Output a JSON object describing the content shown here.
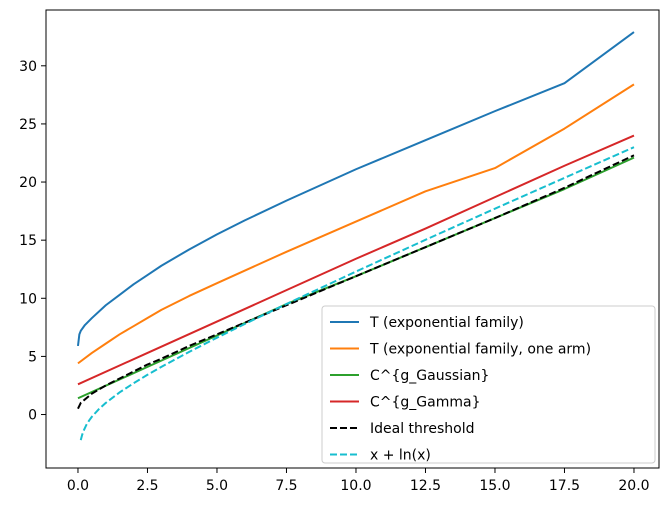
{
  "chart_data": {
    "type": "line",
    "title": "",
    "xlabel": "",
    "ylabel": "",
    "xlim": [
      -1.15,
      20.9
    ],
    "ylim": [
      -4.6,
      34.8
    ],
    "xticks": [
      0.0,
      2.5,
      5.0,
      7.5,
      10.0,
      12.5,
      15.0,
      17.5,
      20.0
    ],
    "xtick_labels": [
      "0.0",
      "2.5",
      "5.0",
      "7.5",
      "10.0",
      "12.5",
      "15.0",
      "17.5",
      "20.0"
    ],
    "yticks": [
      0,
      5,
      10,
      15,
      20,
      25,
      30
    ],
    "ytick_labels": [
      "0",
      "5",
      "10",
      "15",
      "20",
      "25",
      "30"
    ],
    "grid": false,
    "legend_position": "bottom-right",
    "series": [
      {
        "name": "T (exponential family)",
        "color": "#1f77b4",
        "style": "solid",
        "x": [
          0.0,
          0.05,
          0.1,
          0.25,
          0.5,
          1.0,
          1.5,
          2.0,
          2.5,
          3.0,
          4.0,
          5.0,
          6.0,
          7.5,
          10.0,
          12.5,
          15.0,
          17.5,
          20.0
        ],
        "y": [
          5.9,
          6.9,
          7.2,
          7.7,
          8.3,
          9.4,
          10.3,
          11.2,
          12.0,
          12.8,
          14.2,
          15.5,
          16.7,
          18.4,
          21.1,
          23.6,
          26.1,
          28.5,
          32.9
        ]
      },
      {
        "name": "T (exponential family, one arm)",
        "color": "#ff7f0e",
        "style": "solid",
        "x": [
          0.0,
          0.5,
          1.0,
          1.5,
          2.0,
          2.5,
          3.0,
          4.0,
          5.0,
          7.5,
          10.0,
          12.5,
          15.0,
          17.5,
          20.0
        ],
        "y": [
          4.4,
          5.3,
          6.1,
          6.9,
          7.6,
          8.3,
          9.0,
          10.2,
          11.3,
          14.0,
          16.6,
          19.2,
          21.2,
          24.6,
          28.4
        ]
      },
      {
        "name": "C^{g_Gaussian}",
        "color": "#2ca02c",
        "style": "solid",
        "x": [
          0.0,
          2.5,
          5.0,
          7.5,
          10.0,
          12.5,
          15.0,
          17.5,
          20.0
        ],
        "y": [
          1.4,
          4.1,
          6.8,
          9.5,
          11.9,
          14.4,
          16.9,
          19.4,
          22.1
        ]
      },
      {
        "name": "C^{g_Gamma}",
        "color": "#d62728",
        "style": "solid",
        "x": [
          0.0,
          2.5,
          5.0,
          7.5,
          10.0,
          12.5,
          15.0,
          17.5,
          20.0
        ],
        "y": [
          2.6,
          5.3,
          8.0,
          10.7,
          13.4,
          16.0,
          18.7,
          21.4,
          24.0
        ]
      },
      {
        "name": "Ideal threshold",
        "color": "#000000",
        "style": "dashed",
        "x": [
          0.0,
          0.1,
          0.25,
          0.5,
          1.0,
          1.5,
          2.0,
          2.5,
          3.0,
          4.0,
          5.0,
          7.5,
          10.0,
          12.5,
          15.0,
          17.5,
          20.0
        ],
        "y": [
          0.5,
          1.0,
          1.3,
          1.8,
          2.5,
          3.1,
          3.7,
          4.3,
          4.8,
          5.9,
          6.9,
          9.4,
          11.9,
          14.4,
          16.9,
          19.5,
          22.3
        ]
      },
      {
        "name": "x + ln(x)",
        "color": "#17becf",
        "style": "dashed",
        "x": [
          0.1,
          0.15,
          0.2,
          0.3,
          0.4,
          0.5,
          0.75,
          1.0,
          1.5,
          2.0,
          2.5,
          3.0,
          4.0,
          5.0,
          6.0,
          7.5,
          10.0,
          12.5,
          15.0,
          17.5,
          20.0
        ],
        "y": [
          -2.2,
          -1.75,
          -1.41,
          -0.9,
          -0.52,
          -0.19,
          0.46,
          1.0,
          1.91,
          2.69,
          3.42,
          4.1,
          5.39,
          6.61,
          7.79,
          9.51,
          12.3,
          15.03,
          17.71,
          20.36,
          23.0
        ]
      }
    ]
  }
}
